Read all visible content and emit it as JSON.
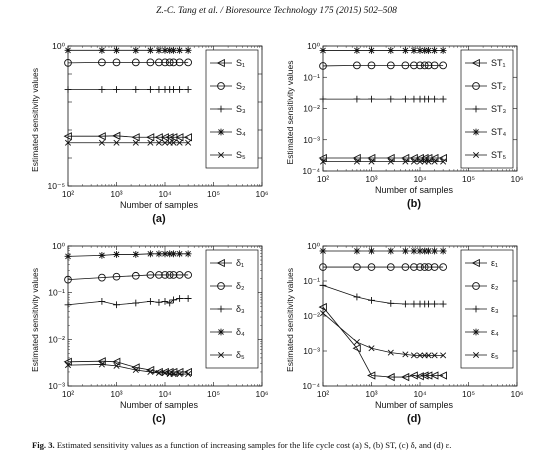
{
  "header": "Z.-C. Tang et al. / Bioresource Technology 175 (2015) 502–508",
  "caption": {
    "label": "Fig. 3.",
    "text": "Estimated sensitivity values as a function of increasing samples for the life cycle cost (a) S, (b) ST, (c) δ, and (d) ε."
  },
  "samples": [
    100,
    500,
    1000,
    2500,
    5000,
    7500,
    10000,
    12500,
    15000,
    20000,
    30000
  ],
  "chart_data": [
    {
      "panel": "(a)",
      "type": "line",
      "xscale": "log",
      "yscale": "log",
      "xlim": [
        100,
        1000000
      ],
      "ylim": [
        1e-05,
        1
      ],
      "xticks": [
        "10²",
        "10³",
        "10⁴",
        "10⁵",
        "10⁶"
      ],
      "yticks": [
        "10⁰",
        "10⁻⁵"
      ],
      "xlabel": "Number of samples",
      "ylabel": "Estimated sensitivity values",
      "legend": "right",
      "grid": false,
      "series": [
        {
          "name": "S₁",
          "marker": "triangle-left",
          "values": [
            0.0006,
            0.0006,
            0.00062,
            0.00055,
            0.00055,
            0.00055,
            0.00055,
            0.00055,
            0.00055,
            0.00055,
            0.00055
          ]
        },
        {
          "name": "S₂",
          "marker": "circle",
          "values": [
            0.25,
            0.26,
            0.26,
            0.26,
            0.26,
            0.26,
            0.26,
            0.26,
            0.26,
            0.26,
            0.26
          ]
        },
        {
          "name": "S₃",
          "marker": "plus",
          "values": [
            0.028,
            0.028,
            0.028,
            0.028,
            0.028,
            0.028,
            0.028,
            0.028,
            0.028,
            0.028,
            0.028
          ]
        },
        {
          "name": "S₄",
          "marker": "star",
          "values": [
            0.7,
            0.7,
            0.7,
            0.7,
            0.7,
            0.7,
            0.7,
            0.7,
            0.7,
            0.7,
            0.7
          ]
        },
        {
          "name": "S₅",
          "marker": "x",
          "values": [
            0.00035,
            0.00035,
            0.00035,
            0.00035,
            0.00035,
            0.00035,
            0.00035,
            0.00035,
            0.00035,
            0.00035,
            0.00035
          ]
        }
      ]
    },
    {
      "panel": "(b)",
      "type": "line",
      "xscale": "log",
      "yscale": "log",
      "xlim": [
        100,
        1000000
      ],
      "ylim": [
        0.0001,
        1
      ],
      "xticks": [
        "10²",
        "10³",
        "10⁴",
        "10⁵",
        "10⁶"
      ],
      "yticks": [
        "10⁰",
        "10⁻¹",
        "10⁻²",
        "10⁻³",
        "10⁻⁴"
      ],
      "xlabel": "Number of samples",
      "ylabel": "Estimated sensitivity values",
      "legend": "right",
      "grid": false,
      "series": [
        {
          "name": "ST₁",
          "marker": "triangle-left",
          "values": [
            0.00026,
            0.00026,
            0.00026,
            0.00026,
            0.00026,
            0.00026,
            0.00026,
            0.00026,
            0.00026,
            0.00026,
            0.00026
          ]
        },
        {
          "name": "ST₂",
          "marker": "circle",
          "values": [
            0.23,
            0.24,
            0.24,
            0.24,
            0.24,
            0.24,
            0.24,
            0.24,
            0.24,
            0.24,
            0.24
          ]
        },
        {
          "name": "ST₃",
          "marker": "plus",
          "values": [
            0.02,
            0.02,
            0.02,
            0.02,
            0.02,
            0.02,
            0.02,
            0.02,
            0.02,
            0.02,
            0.02
          ]
        },
        {
          "name": "ST₄",
          "marker": "star",
          "values": [
            0.72,
            0.72,
            0.72,
            0.72,
            0.72,
            0.72,
            0.72,
            0.72,
            0.72,
            0.72,
            0.72
          ]
        },
        {
          "name": "ST₅",
          "marker": "x",
          "values": [
            0.0002,
            0.0002,
            0.0002,
            0.0002,
            0.0002,
            0.0002,
            0.0002,
            0.0002,
            0.0002,
            0.0002,
            0.0002
          ]
        }
      ]
    },
    {
      "panel": "(c)",
      "type": "line",
      "xscale": "log",
      "yscale": "log",
      "xlim": [
        100,
        1000000
      ],
      "ylim": [
        0.001,
        1
      ],
      "xticks": [
        "10²",
        "10³",
        "10⁴",
        "10⁵",
        "10⁶"
      ],
      "yticks": [
        "10⁰",
        "10⁻¹",
        "10⁻²",
        "10⁻³"
      ],
      "xlabel": "Number of samples",
      "ylabel": "Estimated sensitivity values",
      "legend": "right",
      "grid": false,
      "series": [
        {
          "name": "δ₁",
          "marker": "triangle-left",
          "values": [
            0.0033,
            0.0034,
            0.0033,
            0.0025,
            0.0022,
            0.002,
            0.002,
            0.002,
            0.002,
            0.002,
            0.002
          ]
        },
        {
          "name": "δ₂",
          "marker": "circle",
          "values": [
            0.19,
            0.21,
            0.22,
            0.23,
            0.24,
            0.24,
            0.24,
            0.24,
            0.24,
            0.24,
            0.24
          ]
        },
        {
          "name": "δ₃",
          "marker": "plus",
          "values": [
            0.055,
            0.065,
            0.055,
            0.06,
            0.065,
            0.062,
            0.065,
            0.06,
            0.07,
            0.075,
            0.075
          ]
        },
        {
          "name": "δ₄",
          "marker": "star",
          "values": [
            0.6,
            0.63,
            0.66,
            0.66,
            0.68,
            0.68,
            0.68,
            0.68,
            0.68,
            0.68,
            0.68
          ]
        },
        {
          "name": "δ₅",
          "marker": "x",
          "values": [
            0.0028,
            0.0029,
            0.0027,
            0.0022,
            0.002,
            0.0019,
            0.0019,
            0.0018,
            0.0018,
            0.0018,
            0.0018
          ]
        }
      ]
    },
    {
      "panel": "(d)",
      "type": "line",
      "xscale": "log",
      "yscale": "log",
      "xlim": [
        100,
        1000000
      ],
      "ylim": [
        0.0001,
        1
      ],
      "xticks": [
        "10²",
        "10³",
        "10⁴",
        "10⁵",
        "10⁶"
      ],
      "yticks": [
        "10⁰",
        "10⁻¹",
        "10⁻²",
        "10⁻³",
        "10⁻⁴"
      ],
      "xlabel": "Number of samples",
      "ylabel": "Estimated sensitivity values",
      "legend": "right",
      "grid": false,
      "series": [
        {
          "name": "ε₁",
          "marker": "triangle-left",
          "values": [
            0.018,
            0.0012,
            0.0002,
            0.00018,
            0.00018,
            0.0002,
            0.00019,
            0.0002,
            0.0002,
            0.0002,
            0.0002
          ]
        },
        {
          "name": "ε₂",
          "marker": "circle",
          "values": [
            0.25,
            0.25,
            0.25,
            0.25,
            0.25,
            0.25,
            0.25,
            0.25,
            0.25,
            0.25,
            0.25
          ]
        },
        {
          "name": "ε₃",
          "marker": "plus",
          "values": [
            0.075,
            0.035,
            0.028,
            0.023,
            0.022,
            0.022,
            0.022,
            0.022,
            0.022,
            0.022,
            0.022
          ]
        },
        {
          "name": "ε₄",
          "marker": "star",
          "values": [
            0.72,
            0.72,
            0.72,
            0.72,
            0.72,
            0.72,
            0.72,
            0.72,
            0.72,
            0.72,
            0.72
          ]
        },
        {
          "name": "ε₅",
          "marker": "x",
          "values": [
            0.012,
            0.0018,
            0.0012,
            0.0009,
            0.0008,
            0.00075,
            0.00075,
            0.00075,
            0.00075,
            0.00075,
            0.00075
          ]
        }
      ]
    }
  ]
}
